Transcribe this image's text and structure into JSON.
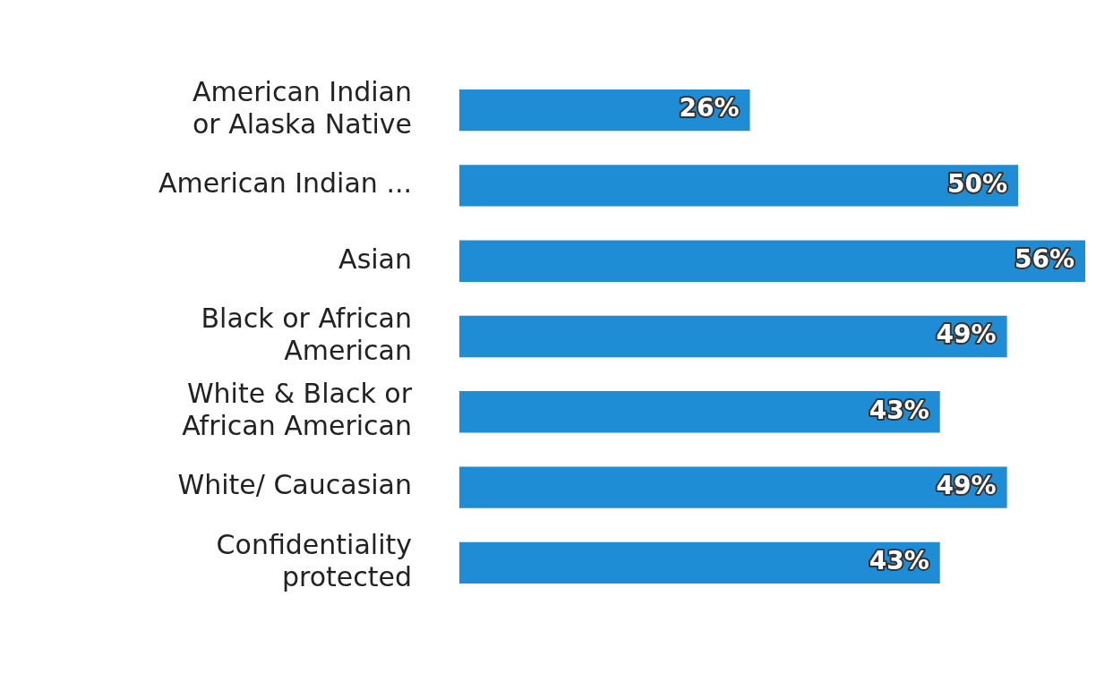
{
  "chart_data": {
    "type": "bar",
    "orientation": "horizontal",
    "categories": [
      "American Indian\nor Alaska Native",
      "American Indian ...",
      "Asian",
      "Black or African\nAmerican",
      "White & Black or\nAfrican American",
      "White/ Caucasian",
      "Confidentiality\nprotected"
    ],
    "values": [
      26,
      50,
      56,
      49,
      43,
      49,
      43
    ],
    "value_labels": [
      "26%",
      "50%",
      "56%",
      "49%",
      "43%",
      "49%",
      "43%"
    ],
    "color": "#1f8dd6",
    "legend": false
  }
}
